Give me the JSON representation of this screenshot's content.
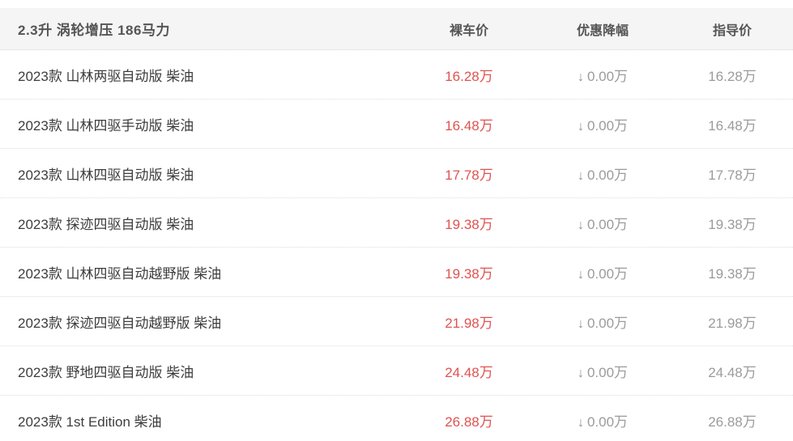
{
  "header": {
    "title": "2.3升 涡轮增压 186马力",
    "columns": {
      "bare": "裸车价",
      "discount": "优惠降幅",
      "guide": "指导价"
    }
  },
  "icons": {
    "down_arrow": "↓"
  },
  "colors": {
    "header_bg": "#f5f5f5",
    "header_text": "#555555",
    "row_name_text": "#3d3d3d",
    "bare_price_red": "#df5350",
    "muted_gray": "#9b9b9b",
    "dotted_border": "#dcdcdc"
  },
  "rows": [
    {
      "name": "2023款 山林两驱自动版 柴油",
      "bare_price": "16.28万",
      "discount": "0.00万",
      "guide_price": "16.28万"
    },
    {
      "name": "2023款 山林四驱手动版 柴油",
      "bare_price": "16.48万",
      "discount": "0.00万",
      "guide_price": "16.48万"
    },
    {
      "name": "2023款 山林四驱自动版 柴油",
      "bare_price": "17.78万",
      "discount": "0.00万",
      "guide_price": "17.78万"
    },
    {
      "name": "2023款 探迹四驱自动版 柴油",
      "bare_price": "19.38万",
      "discount": "0.00万",
      "guide_price": "19.38万"
    },
    {
      "name": "2023款 山林四驱自动越野版 柴油",
      "bare_price": "19.38万",
      "discount": "0.00万",
      "guide_price": "19.38万"
    },
    {
      "name": "2023款 探迹四驱自动越野版 柴油",
      "bare_price": "21.98万",
      "discount": "0.00万",
      "guide_price": "21.98万"
    },
    {
      "name": "2023款 野地四驱自动版 柴油",
      "bare_price": "24.48万",
      "discount": "0.00万",
      "guide_price": "24.48万"
    },
    {
      "name": "2023款 1st Edition 柴油",
      "bare_price": "26.88万",
      "discount": "0.00万",
      "guide_price": "26.88万"
    }
  ]
}
